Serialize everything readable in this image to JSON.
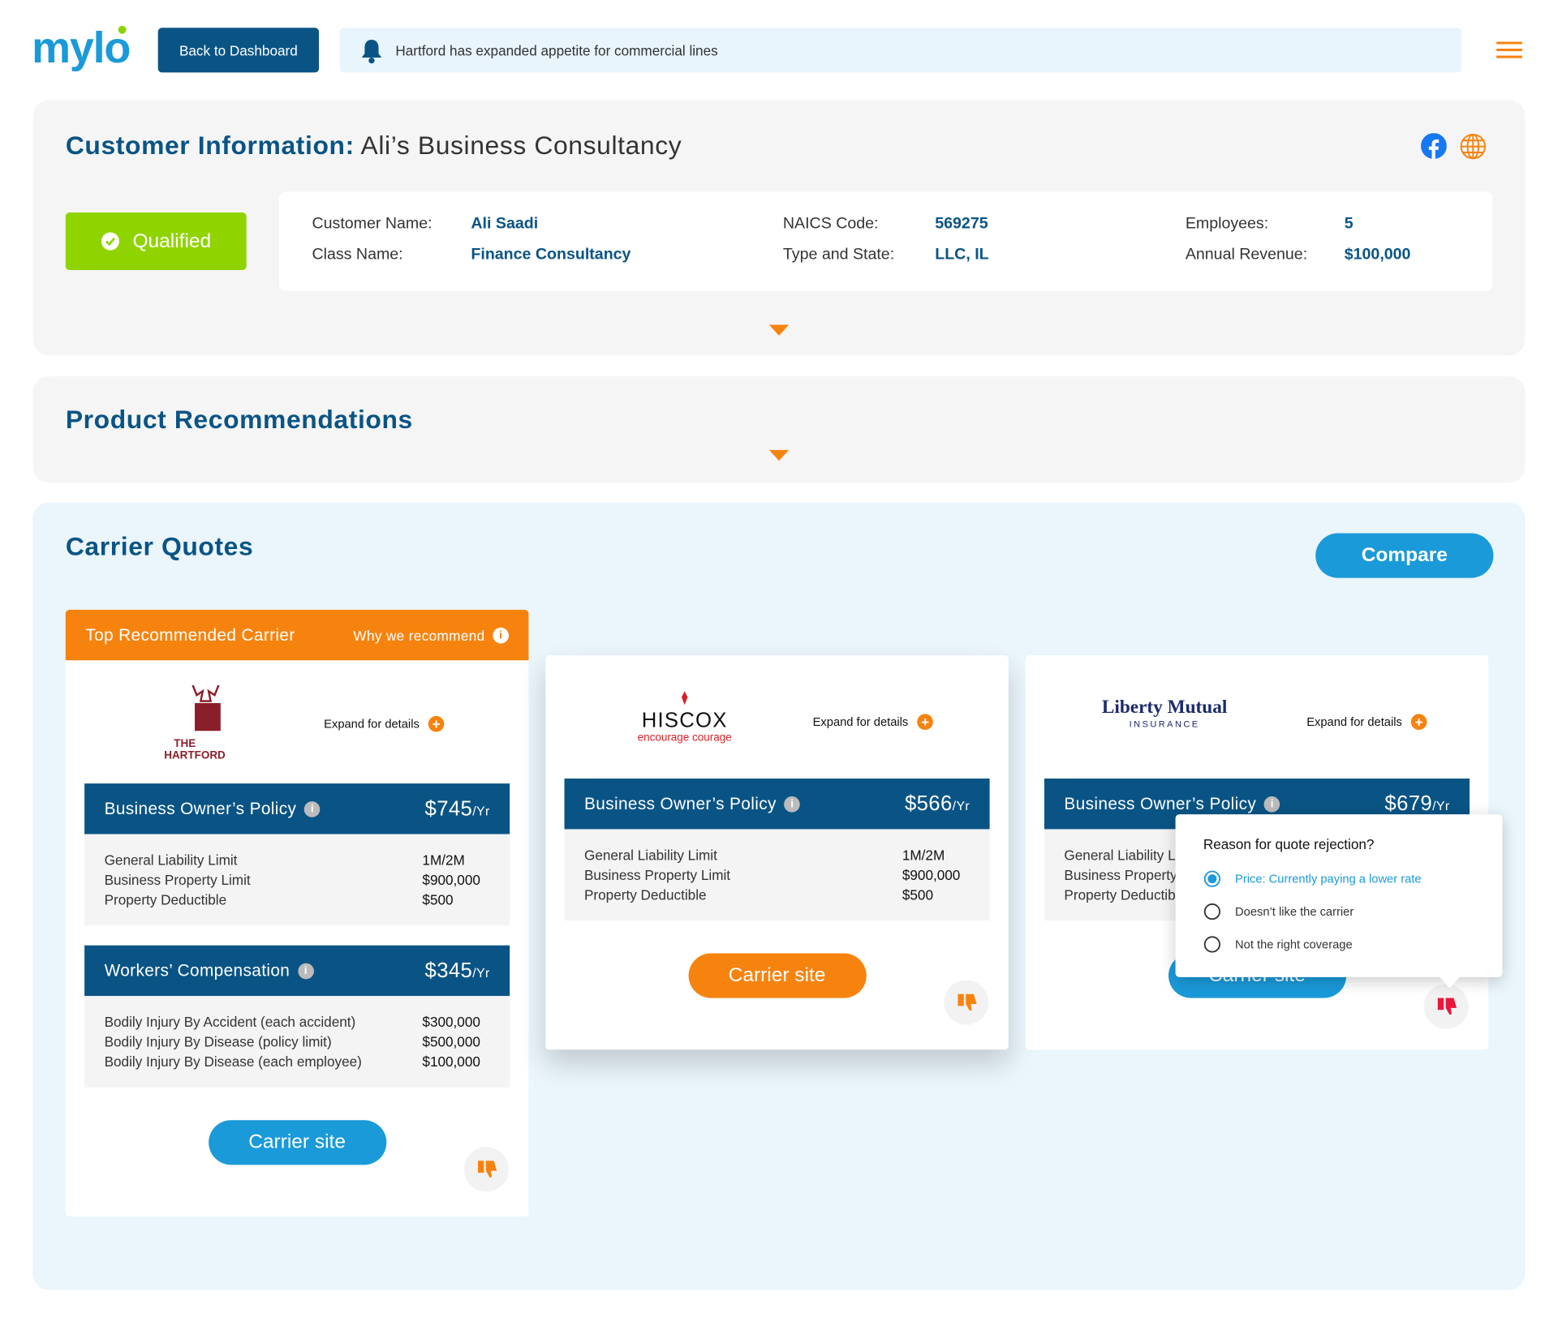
{
  "header": {
    "logo": "mylo",
    "back_button": "Back to Dashboard",
    "notification": "Hartford has expanded appetite for commercial lines"
  },
  "customer_info": {
    "title_label": "Customer Information:",
    "title_name": "Ali’s Business Consultancy",
    "status": "Qualified",
    "fields": [
      {
        "label": "Customer Name:",
        "value": "Ali Saadi"
      },
      {
        "label": "Class Name:",
        "value": "Finance Consultancy"
      },
      {
        "label": "NAICS Code:",
        "value": "569275"
      },
      {
        "label": "Type and State:",
        "value": "LLC, IL"
      },
      {
        "label": "Employees:",
        "value": "5"
      },
      {
        "label": "Annual Revenue:",
        "value": "$100,000"
      }
    ]
  },
  "product_recommendations": {
    "title": "Product Recommendations"
  },
  "carrier_quotes": {
    "title": "Carrier Quotes",
    "compare_button": "Compare",
    "top_banner": "Top Recommended Carrier",
    "why_link": "Why we recommend",
    "cards": [
      {
        "logo": [
          "THE",
          "HARTFORD"
        ],
        "expand": "Expand for details",
        "carrier_site": "Carrier site",
        "policies": [
          {
            "name": "Business Owner’s Policy",
            "price": "$745",
            "unit": "/Yr",
            "rows": [
              {
                "label": "General Liability Limit",
                "value": "1M/2M"
              },
              {
                "label": "Business Property Limit",
                "value": "$900,000"
              },
              {
                "label": "Property Deductible",
                "value": "$500"
              }
            ]
          },
          {
            "name": "Workers’ Compensation",
            "price": "$345",
            "unit": "/Yr",
            "rows": [
              {
                "label": "Bodily Injury By Accident (each accident)",
                "value": "$300,000"
              },
              {
                "label": "Bodily Injury By Disease (policy limit)",
                "value": "$500,000"
              },
              {
                "label": "Bodily Injury By Disease (each employee)",
                "value": "$100,000"
              }
            ]
          }
        ]
      },
      {
        "logo": [
          "HISCOX",
          "encourage courage"
        ],
        "expand": "Expand for details",
        "carrier_site": "Carrier site",
        "policies": [
          {
            "name": "Business Owner’s Policy",
            "price": "$566",
            "unit": "/Yr",
            "rows": [
              {
                "label": "General Liability Limit",
                "value": "1M/2M"
              },
              {
                "label": "Business Property Limit",
                "value": "$900,000"
              },
              {
                "label": "Property Deductible",
                "value": "$500"
              }
            ]
          }
        ]
      },
      {
        "logo": [
          "Liberty Mutual",
          "INSURANCE"
        ],
        "expand": "Expand for details",
        "carrier_site": "Carrier site",
        "policies": [
          {
            "name": "Business Owner’s Policy",
            "price": "$679",
            "unit": "/Yr",
            "rows": [
              {
                "label": "General Liability Limit"
              },
              {
                "label": "Business Property Limit"
              },
              {
                "label": "Property Deductible"
              }
            ]
          }
        ]
      }
    ],
    "rejection": {
      "question": "Reason for quote rejection?",
      "options": [
        "Price: Currently paying a lower rate",
        "Doesn’t like the carrier",
        "Not the right coverage"
      ],
      "selected": 0
    }
  }
}
